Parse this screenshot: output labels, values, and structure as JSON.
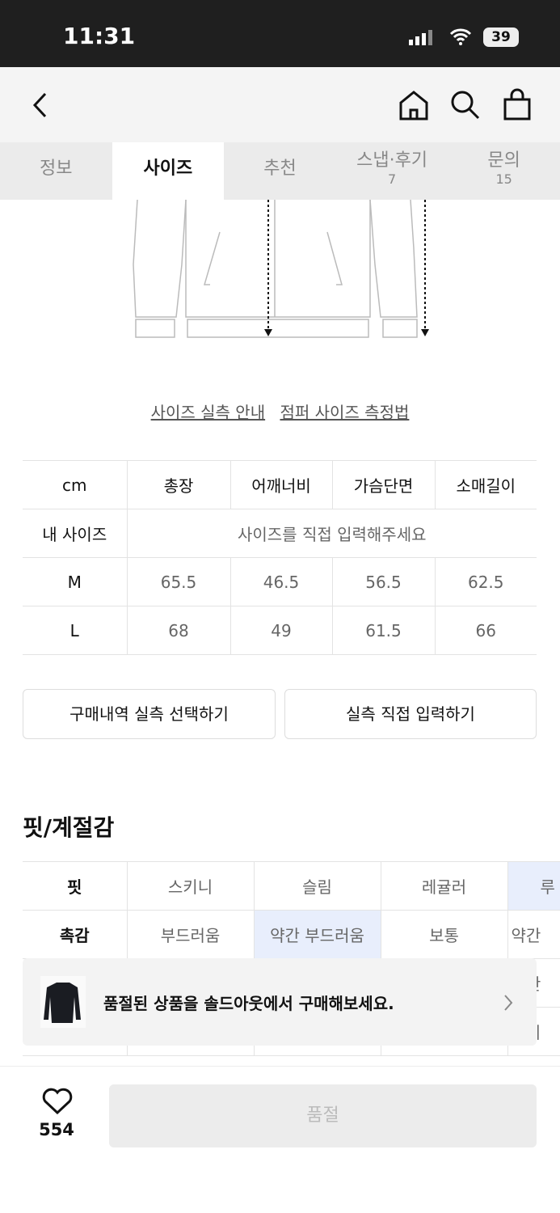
{
  "status_bar": {
    "time": "11:31",
    "battery": "39"
  },
  "header": {
    "back_icon": "chevron-left-icon",
    "icons": [
      "home-icon",
      "search-icon",
      "shopping-bag-icon"
    ]
  },
  "tabs": [
    {
      "label": "정보"
    },
    {
      "label": "사이즈",
      "active": true
    },
    {
      "label": "추천"
    },
    {
      "label": "스냅·후기",
      "count": "7"
    },
    {
      "label": "문의",
      "count": "15"
    }
  ],
  "links": {
    "guide": "사이즈 실측 안내",
    "method": "점퍼 사이즈 측정법"
  },
  "size_table": {
    "headers": [
      "cm",
      "총장",
      "어깨너비",
      "가슴단면",
      "소매길이"
    ],
    "my_size": {
      "label": "내 사이즈",
      "placeholder": "사이즈를 직접 입력해주세요"
    },
    "rows": [
      [
        "M",
        "65.5",
        "46.5",
        "56.5",
        "62.5"
      ],
      [
        "L",
        "68",
        "49",
        "61.5",
        "66"
      ]
    ]
  },
  "buttons": {
    "purchase_history": "구매내역 실측 선택하기",
    "direct_input": "실측 직접 입력하기"
  },
  "fit_section": {
    "title": "핏/계절감",
    "rows": [
      {
        "label": "핏",
        "options": [
          "스키니",
          "슬림",
          "레귤러",
          "루"
        ],
        "selected": 3
      },
      {
        "label": "촉감",
        "options": [
          "부드러움",
          "약간 부드러움",
          "보통",
          "약간"
        ],
        "selected": 1
      },
      {
        "label": "",
        "options": [
          "",
          "",
          "",
          "약간"
        ],
        "selected": -1
      },
      {
        "label": "",
        "options": [
          "",
          "",
          "",
          "거의"
        ],
        "selected": -1
      }
    ],
    "selected_color": "#e8eefc"
  },
  "banner": {
    "text": "품절된 상품을 솔드아웃에서 구매해보세요."
  },
  "bottom": {
    "likes": "554",
    "buy_label": "품절"
  }
}
